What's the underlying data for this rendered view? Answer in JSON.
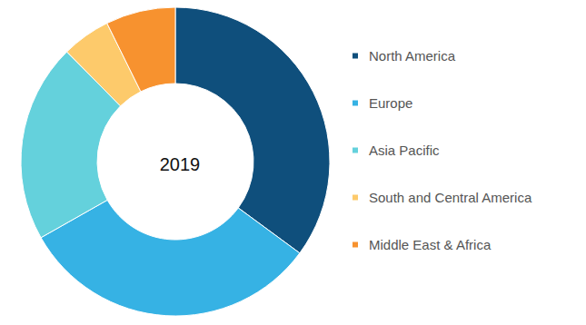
{
  "chart_data": {
    "type": "pie",
    "title": "2019",
    "categories": [
      "North America",
      "Europe",
      "Asia Pacific",
      "South and Central America",
      "Middle East & Africa"
    ],
    "values": [
      35.1,
      31.7,
      20.8,
      5.1,
      7.3
    ],
    "colors": [
      "#0f4f7c",
      "#36b2e4",
      "#64d1dc",
      "#fdca6b",
      "#f7922f"
    ],
    "legend": "right"
  }
}
